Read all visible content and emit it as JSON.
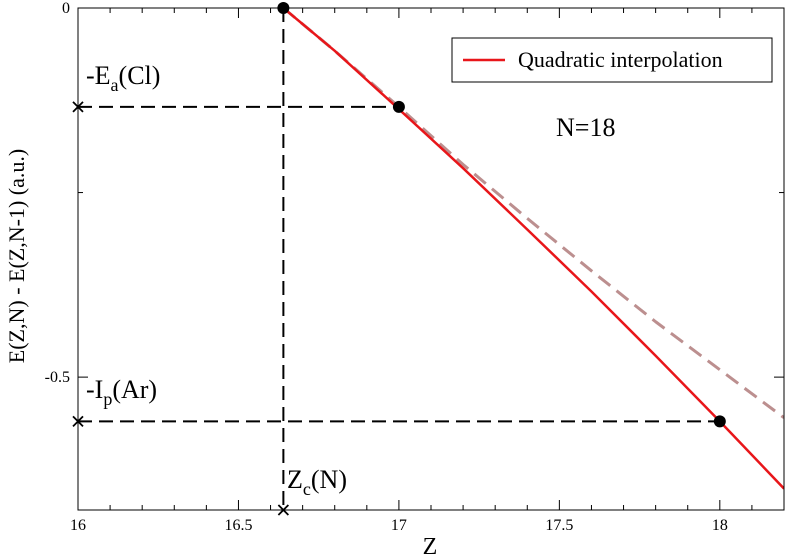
{
  "chart_data": {
    "type": "line",
    "xlabel": "Z",
    "ylabel": "E(Z,N) - E(Z,N-1)  (a.u.)",
    "xlim": [
      16,
      18.2
    ],
    "ylim": [
      -0.68,
      0.0
    ],
    "x_ticks": [
      16,
      16.5,
      17,
      17.5,
      18
    ],
    "x_tick_labels": [
      "16",
      "16.5",
      "17",
      "17.5",
      "18"
    ],
    "y_ticks": [
      0,
      -0.5
    ],
    "y_tick_labels": [
      "0",
      "-0.5"
    ],
    "series": [
      {
        "name": "Quadratic interpolation",
        "style": "solid",
        "color": "#e8161a",
        "x": [
          16.64,
          16.8,
          17.0,
          17.2,
          17.4,
          17.6,
          17.8,
          18.0,
          18.2
        ],
        "y": [
          0.0,
          -0.058,
          -0.137,
          -0.217,
          -0.3,
          -0.384,
          -0.471,
          -0.56,
          -0.651
        ]
      },
      {
        "style": "dashed",
        "color": "#bc8f8f",
        "x": [
          16.64,
          16.8,
          17.0,
          17.2,
          17.4,
          17.6,
          17.8,
          18.0,
          18.2
        ],
        "y": [
          0.0,
          -0.058,
          -0.134,
          -0.212,
          -0.285,
          -0.356,
          -0.425,
          -0.49,
          -0.555
        ]
      }
    ],
    "points": [
      {
        "x": 16.64,
        "y": 0.0
      },
      {
        "x": 17.0,
        "y": -0.134
      },
      {
        "x": 18.0,
        "y": -0.56
      }
    ],
    "guides": [
      {
        "from_x": 16.0,
        "to_x": 17.0,
        "y": -0.134
      },
      {
        "from_x": 16.0,
        "to_x": 18.0,
        "y": -0.56
      },
      {
        "x": 16.64,
        "from_y": 0.0,
        "to_y": -0.68
      }
    ],
    "annotations": {
      "ea": {
        "prefix": "-E",
        "sub": "a",
        "suffix": "(Cl)"
      },
      "ip": {
        "prefix": "-I",
        "sub": "p",
        "suffix": "(Ar)"
      },
      "zc": {
        "prefix": "Z",
        "sub": "c",
        "suffix": "(N)"
      },
      "n": "N=18"
    },
    "legend": {
      "label": "Quadratic interpolation",
      "position": "top-right"
    },
    "colors": {
      "fit": "#e8161a",
      "dashed": "#bc8f8f",
      "guide": "#000000"
    }
  }
}
